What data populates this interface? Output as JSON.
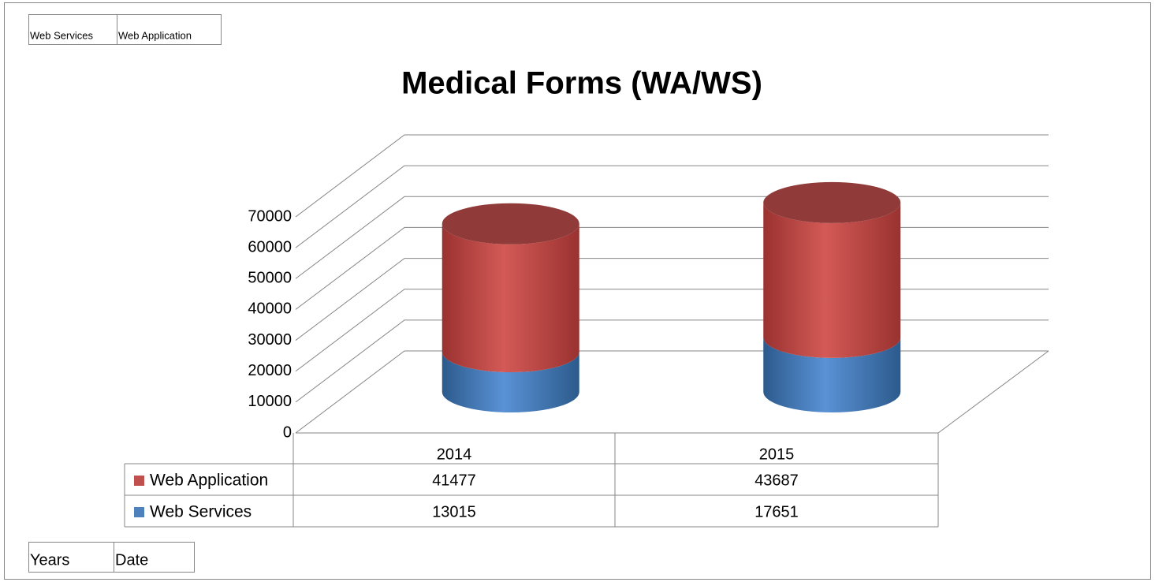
{
  "chart_data": {
    "type": "bar",
    "stacked": true,
    "shape": "cylinder",
    "title": "Medical Forms (WA/WS)",
    "legend_fields": [
      "Web Services",
      "Web Application"
    ],
    "axis_fields": [
      "Years",
      "Date"
    ],
    "categories": [
      "2014",
      "2015"
    ],
    "series": [
      {
        "name": "Web Services",
        "color": "#4f81bd",
        "values": [
          13015,
          17651
        ]
      },
      {
        "name": "Web Application",
        "color": "#c0504d",
        "values": [
          41477,
          43687
        ]
      }
    ],
    "ylim": [
      0,
      70000
    ],
    "yticks": [
      0,
      10000,
      20000,
      30000,
      40000,
      50000,
      60000,
      70000
    ],
    "grid": true
  }
}
